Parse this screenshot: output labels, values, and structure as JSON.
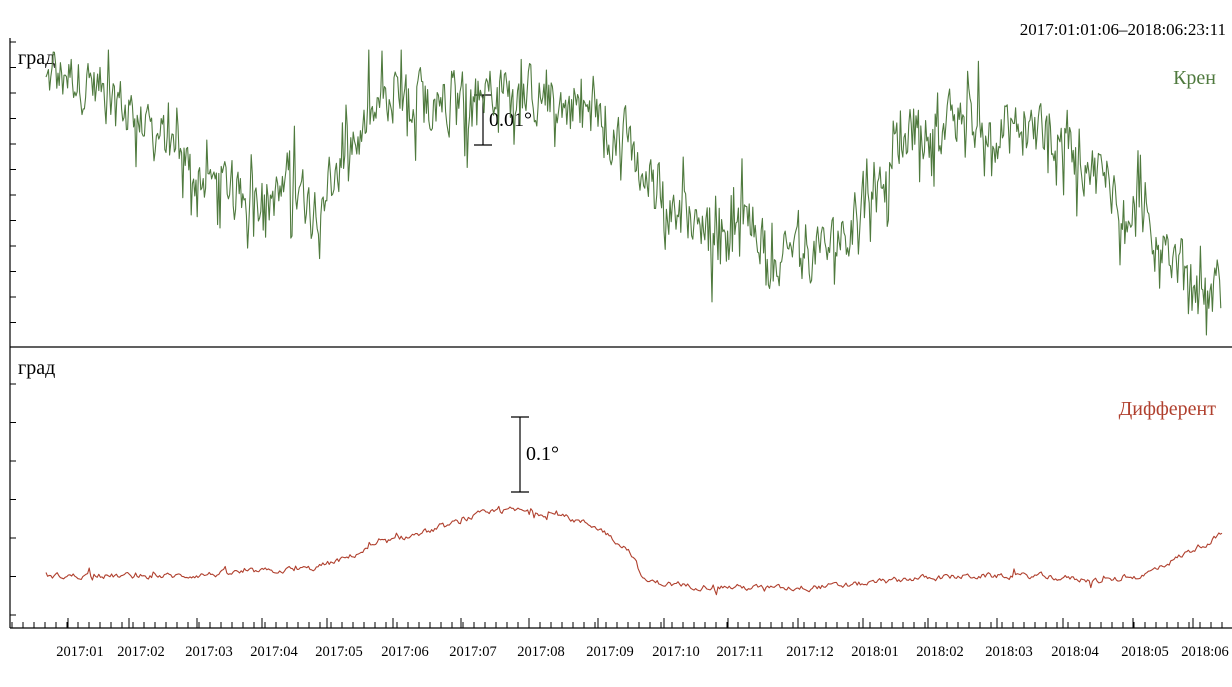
{
  "time_range": "2017:01:01:06–2018:06:23:11",
  "chart_data": [
    {
      "type": "line",
      "unit_label": "град",
      "series": [
        {
          "name": "Крен",
          "color": "#4f7a3e",
          "trend": [
            [
              0,
              0.88
            ],
            [
              0.4,
              0.92
            ],
            [
              1,
              0.84
            ],
            [
              2.5,
              0.52
            ],
            [
              4,
              0.46
            ],
            [
              5,
              0.78
            ],
            [
              6,
              0.84
            ],
            [
              7,
              0.86
            ],
            [
              8,
              0.8
            ],
            [
              8.7,
              0.7
            ],
            [
              9,
              0.55
            ],
            [
              9.5,
              0.45
            ],
            [
              10.0,
              0.37
            ],
            [
              10.7,
              0.36
            ],
            [
              10.9,
              0.22
            ],
            [
              11,
              0.3
            ],
            [
              11.4,
              0.28
            ],
            [
              11.8,
              0.3
            ],
            [
              12.4,
              0.48
            ],
            [
              13.1,
              0.72
            ],
            [
              14,
              0.73
            ],
            [
              15,
              0.71
            ],
            [
              16,
              0.55
            ],
            [
              17,
              0.26
            ],
            [
              17.7,
              0.12
            ]
          ],
          "noise_amplitude": 0.16
        }
      ],
      "scale_bar_label": "0.01°"
    },
    {
      "type": "line",
      "unit_label": "град",
      "series": [
        {
          "name": "Дифферент",
          "color": "#b0402e",
          "trend": [
            [
              0,
              0.2
            ],
            [
              2,
              0.2
            ],
            [
              4,
              0.23
            ],
            [
              4.5,
              0.27
            ],
            [
              5,
              0.33
            ],
            [
              6,
              0.4
            ],
            [
              6.5,
              0.45
            ],
            [
              7,
              0.47
            ],
            [
              7.7,
              0.45
            ],
            [
              8.3,
              0.4
            ],
            [
              8.8,
              0.3
            ],
            [
              9.0,
              0.18
            ],
            [
              9.6,
              0.16
            ],
            [
              11,
              0.15
            ],
            [
              12,
              0.16
            ],
            [
              13,
              0.19
            ],
            [
              14,
              0.2
            ],
            [
              15,
              0.2
            ],
            [
              15.9,
              0.18
            ],
            [
              16.5,
              0.2
            ],
            [
              17,
              0.27
            ],
            [
              17.7,
              0.37
            ]
          ],
          "noise_amplitude": 0.02
        }
      ],
      "scale_bar_label": "0.1°"
    }
  ],
  "x_tick_labels": [
    "2017:01",
    "2017:02",
    "2017:03",
    "2017:04",
    "2017:05",
    "2017:06",
    "2017:07",
    "2017:08",
    "2017:09",
    "2017:10",
    "2017:11",
    "2017:12",
    "2018:01",
    "2018:02",
    "2018:03",
    "2018:04",
    "2018:05",
    "2018:06"
  ]
}
